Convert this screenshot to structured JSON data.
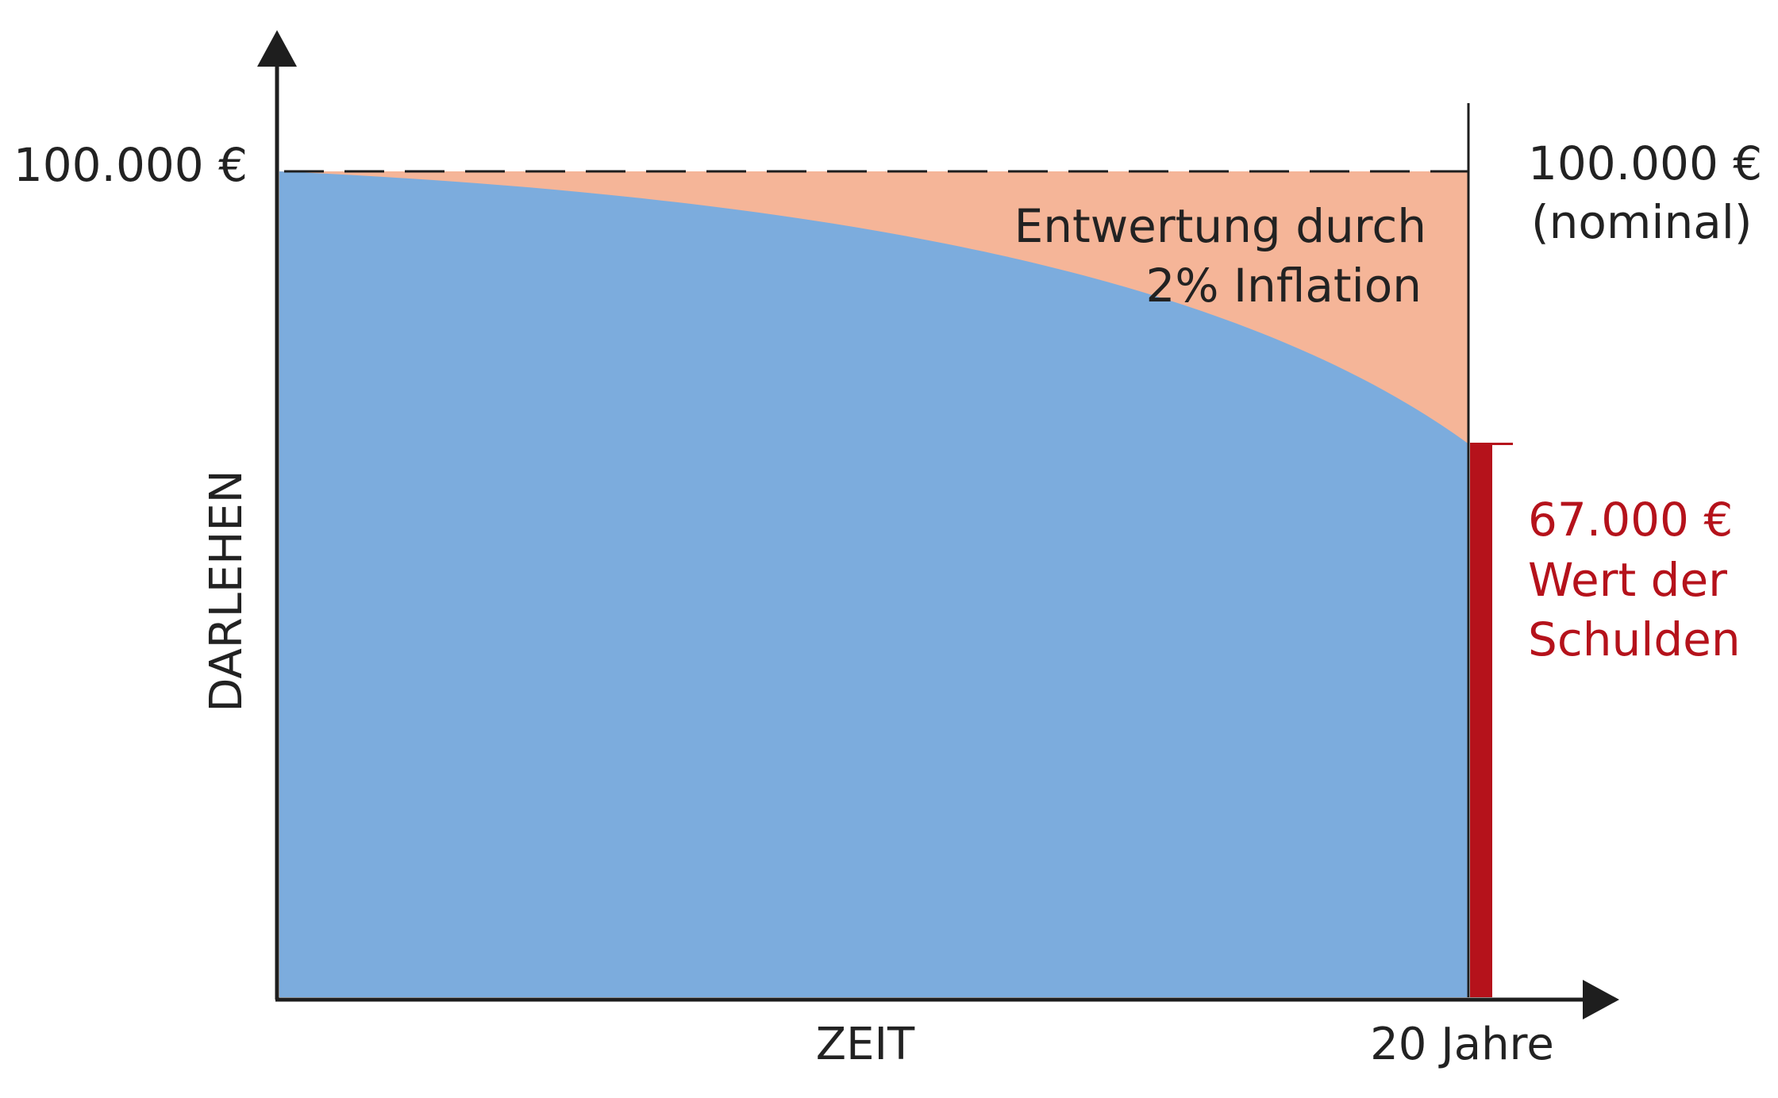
{
  "colors": {
    "real_value": "#7cacdd",
    "inflation_loss": "#f5b598",
    "accent": "#b5121b",
    "axis": "#1e1e1e"
  },
  "chart_data": {
    "type": "area",
    "ylabel": "DARLEHEN",
    "xlabel": "ZEIT",
    "x_end_label": "20 Jahre",
    "x": [
      0,
      20
    ],
    "xlim": [
      0,
      20
    ],
    "ylim": [
      0,
      100000
    ],
    "nominal_value": 100000,
    "nominal_label_left": "100.000 €",
    "nominal_label_right": "100.000 €",
    "nominal_caption": "(nominal)",
    "real_value_end": 67000,
    "end_value_label": "67.000 €",
    "end_caption_line1": "Wert der",
    "end_caption_line2": "Schulden",
    "annotation_line1": "Entwertung durch",
    "annotation_line2": "2% Inflation",
    "grid": false
  }
}
